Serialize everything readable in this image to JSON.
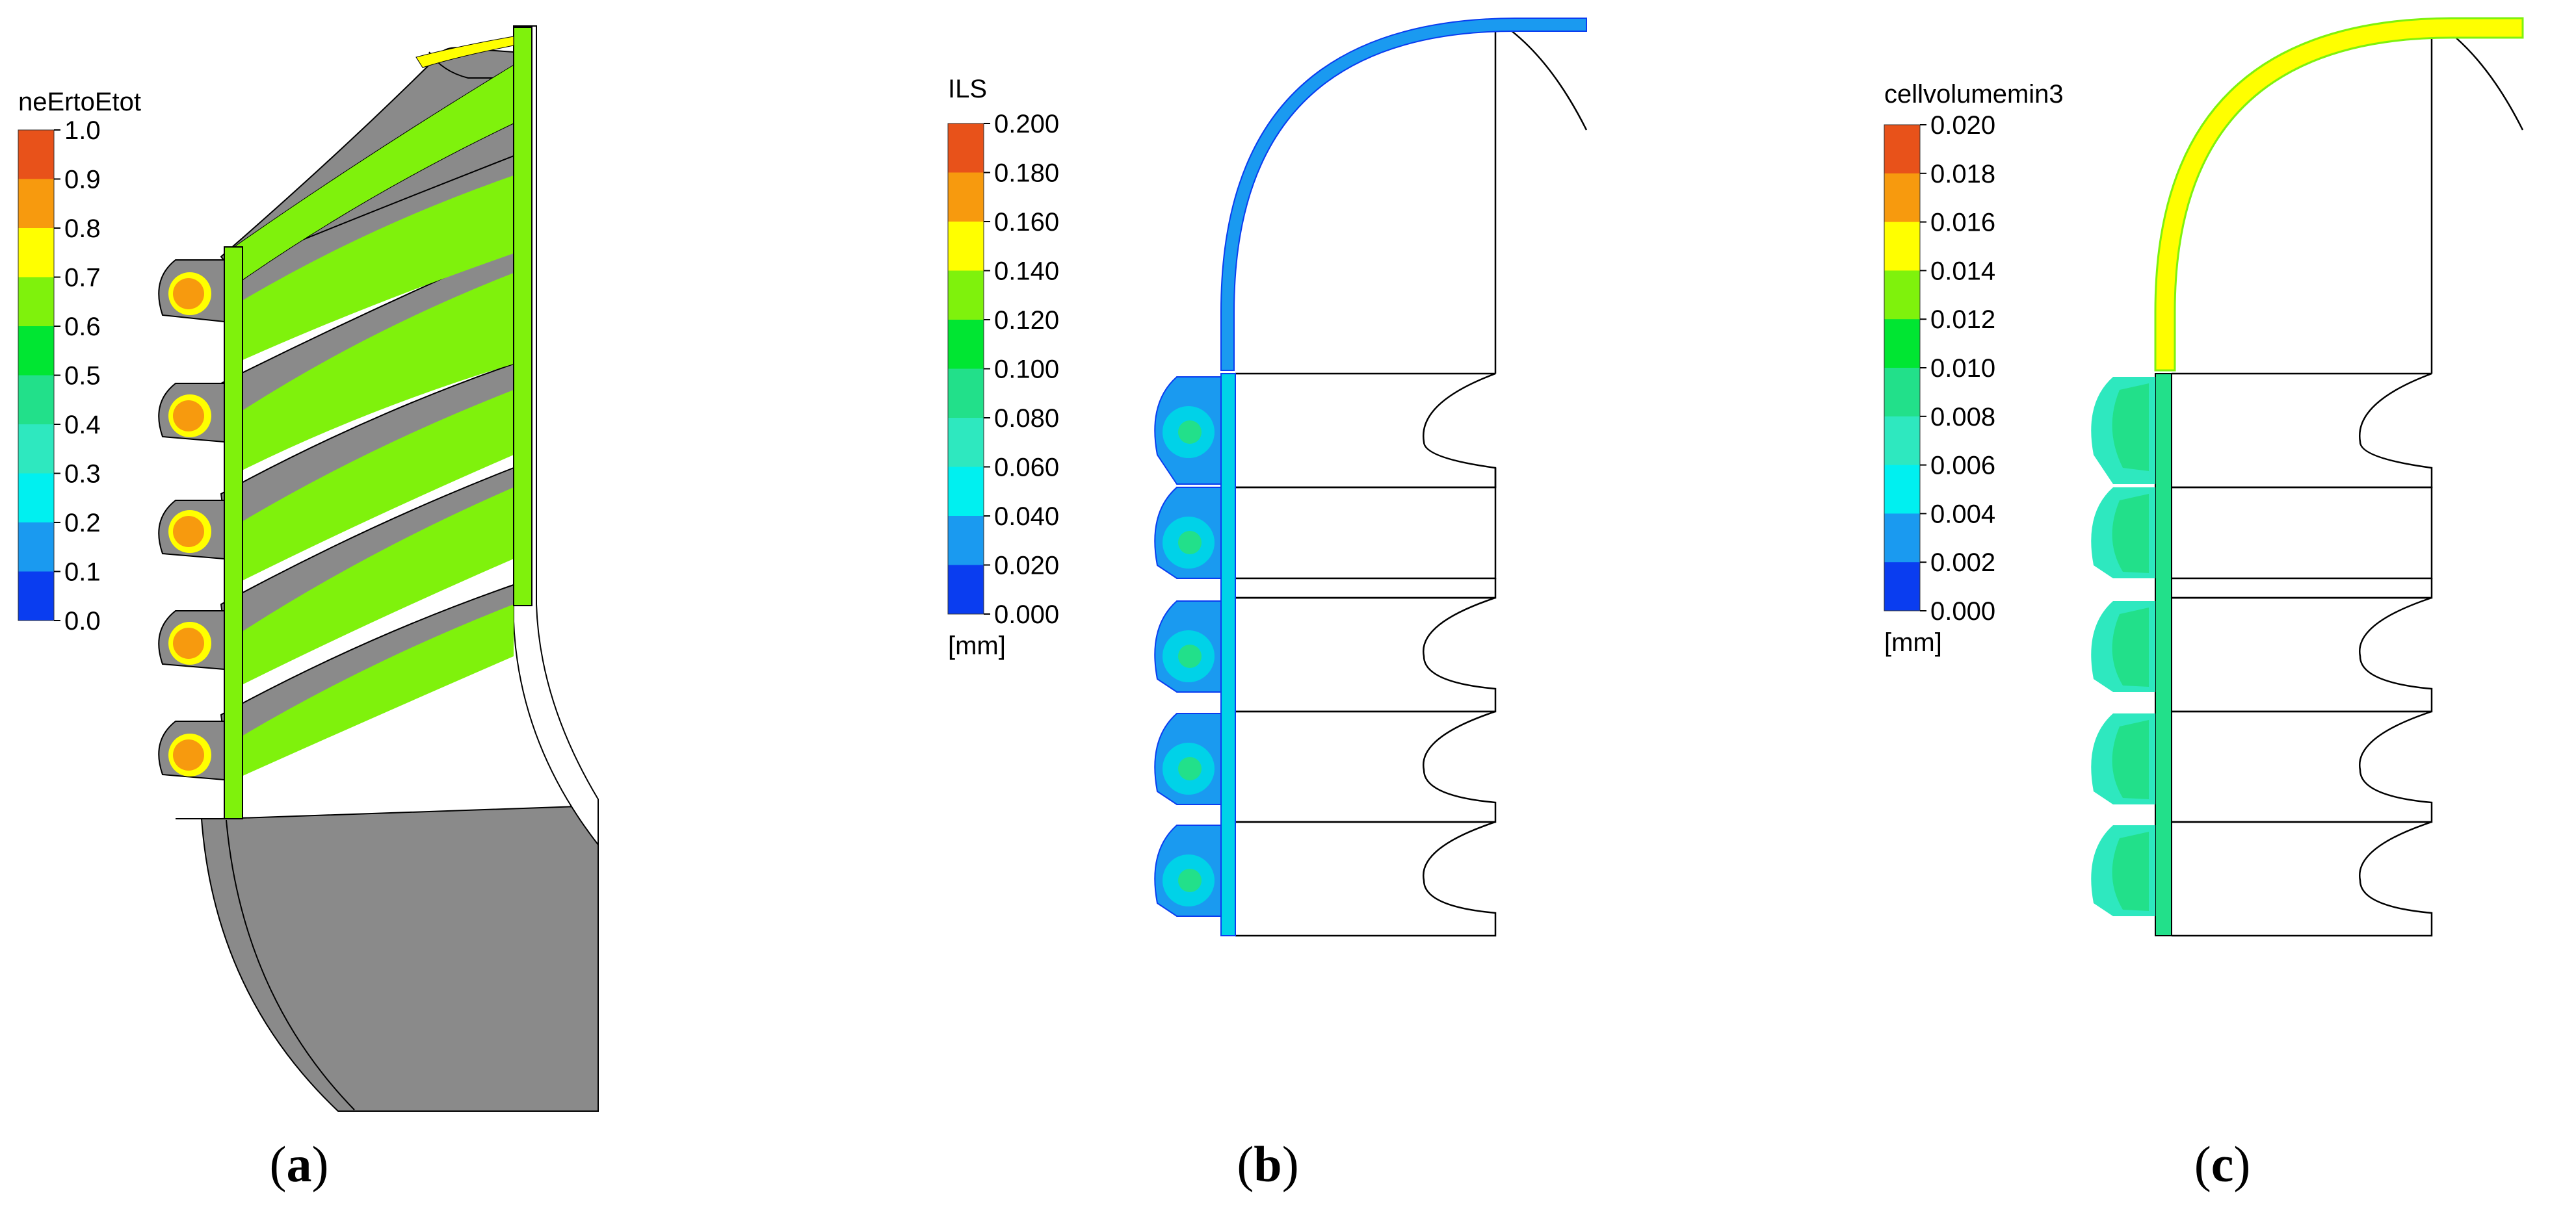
{
  "panels": [
    {
      "id": "a",
      "caption_open": "(",
      "caption_letter": "a",
      "caption_close": ")",
      "legend": {
        "title": "neErtoEtot",
        "unit": "",
        "ticks": [
          "1.0",
          "0.9",
          "0.8",
          "0.7",
          "0.6",
          "0.5",
          "0.4",
          "0.3",
          "0.2",
          "0.1",
          "0.0"
        ]
      }
    },
    {
      "id": "b",
      "caption_open": "(",
      "caption_letter": "b",
      "caption_close": ")",
      "legend": {
        "title": "ILS",
        "unit": "[mm]",
        "ticks": [
          "0.200",
          "0.180",
          "0.160",
          "0.140",
          "0.120",
          "0.100",
          "0.080",
          "0.060",
          "0.040",
          "0.020",
          "0.000"
        ]
      }
    },
    {
      "id": "c",
      "caption_open": "(",
      "caption_letter": "c",
      "caption_close": ")",
      "legend": {
        "title": "cellvolumemin3",
        "unit": "[mm]",
        "ticks": [
          "0.020",
          "0.018",
          "0.016",
          "0.014",
          "0.012",
          "0.010",
          "0.008",
          "0.006",
          "0.004",
          "0.002",
          "0.000"
        ]
      }
    }
  ],
  "colormap": [
    "#e8521a",
    "#f79a0e",
    "#ffff00",
    "#7ff20c",
    "#00e632",
    "#22e08a",
    "#2ee8bf",
    "#00f0f0",
    "#1a9af0",
    "#0a3df0"
  ],
  "colors": {
    "outline": "#000000",
    "shaded_gray": "#808080",
    "shaded_gray_light": "#9a9a9a",
    "green_field": "#7ff20c",
    "hot_core": "#f79a0e",
    "hot_center": "#ef7f1a",
    "ils_shell": "#1a9af0",
    "ils_shell_inner": "#0a5af0",
    "ils_fill": "#00d2e8",
    "ils_core": "#22e08a",
    "cell_shell": "#ffff00",
    "cell_fill": "#22e08a",
    "cell_light": "#2ee8bf"
  }
}
